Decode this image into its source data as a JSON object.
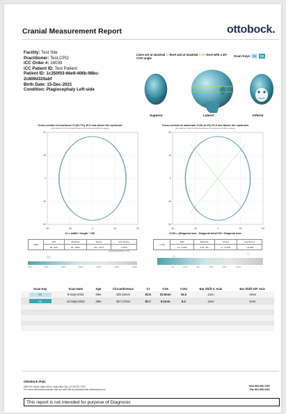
{
  "report": {
    "title": "Cranial Measurement Report",
    "brand": "ottobock",
    "brand_dot": "."
  },
  "patient": {
    "facility_label": "Facility:",
    "facility": "Test Site",
    "practitioner_label": "Practitioner:",
    "practitioner": "Test,CPO",
    "icc_order_label": "iCC Order #:",
    "icc_order": "24039",
    "icc_patient_label": "iCC Patient ID:",
    "icc_patient": "Test Patient",
    "patient_id_label": "Patient ID:",
    "patient_id": "1c350f03-66e9-406b-98bc-2c809d320abf",
    "birth_date_label": "Birth Date:",
    "birth_date": "15-Dec-2021",
    "condition_label": "Condition:",
    "condition": "Plagiocephaly Left-side"
  },
  "views": {
    "note_prefix": "Lines are at maximal ",
    "note_ci": "CI",
    "note_mid": " level and at maximal ",
    "note_cva": "CVAI",
    "note_suffix": " level with a 45° CVAI angle",
    "scan_keys_label": "Scan Keys",
    "scan_keys": [
      "01",
      "02"
    ],
    "labels": {
      "superior": "Superior",
      "lateral": "Lateral",
      "inferior": "Inferior"
    }
  },
  "ci_chart": {
    "title": "Cross-section at maximum CI (81.7%) 40.0 mm above the eyebrows",
    "subtitle": "(the maximum CI is computed between the eyebrows and 80mm above)",
    "formula": "CI = width / length * 100",
    "severity": {
      "headers": [
        "<85%",
        "Mild",
        "Moderate",
        "Severe",
        "Very Severe"
      ],
      "ranges": [
        "",
        "90 - 93%",
        "93 - 100%",
        "100 - 107%",
        "> 107%"
      ]
    },
    "std_dev": "Standard deviation: 0.57",
    "scale_ticks": [
      "70%",
      "80%",
      "90%",
      "100%",
      "110%",
      "120%",
      "130%"
    ],
    "markers": [
      81.5,
      81.7
    ],
    "chart_data": {
      "type": "scatter",
      "x_ticks": [
        -90,
        -45,
        0,
        45,
        90
      ],
      "y_ticks": [
        90,
        45,
        0,
        -45,
        -90
      ],
      "xlim": [
        -90,
        90
      ],
      "ylim": [
        -90,
        90
      ],
      "grid": true,
      "series": [
        {
          "rx": 66,
          "ry": 82,
          "cx": 0,
          "cy": 0
        },
        {
          "rx": 67,
          "ry": 82,
          "cx": 0,
          "cy": 0
        }
      ]
    }
  },
  "cvai_chart": {
    "title": "Cross-section at maximum CVAI (6.2%) 21.0 mm above the eyebrows",
    "subtitle": "(the maximum CVAI is computed between the eyebrows and 80mm above)",
    "formula": "CVAI = (Diagonal max - Diagonal min)*100 / Diagonal max",
    "severity": {
      "headers": [
        "< 3.5%",
        "Mild",
        "Moderate",
        "Severe",
        "Very Severe"
      ],
      "ranges": [
        "",
        "3.5 - 6.25%",
        "6.25 - 9%",
        "9 - 11.25%",
        "> 11.25%"
      ]
    },
    "scale_ticks": [
      "0%",
      "2.5%",
      "5%",
      "7.5%",
      "10%",
      "12.5%"
    ],
    "markers": [
      16.0,
      6.2
    ],
    "chart_data": {
      "type": "scatter",
      "x_ticks": [
        -90,
        -45,
        0,
        45,
        90
      ],
      "y_ticks": [
        90,
        45,
        0,
        -45,
        -90
      ],
      "xlim": [
        -90,
        90
      ],
      "ylim": [
        -90,
        90
      ],
      "grid": true,
      "series": [
        {
          "rx": 64,
          "ry": 82,
          "cx": 0,
          "cy": 0
        },
        {
          "rx": 65,
          "ry": 82,
          "cx": 0,
          "cy": 0
        }
      ]
    }
  },
  "scans": {
    "headers": [
      "Scan Key",
      "Scan Date",
      "Age",
      "Circumference",
      "CI",
      "CVA",
      "CVAI",
      "Ear Shift V. Axis",
      "Ear Shift A/P. Axis"
    ],
    "rows": [
      {
        "key": "01",
        "date": "8-Sept-2022",
        "age": "38w",
        "circ": "439.18mm",
        "ci": "81.5",
        "cva": "23.5mm",
        "cvai": "16.0",
        "ear_v": "1mm",
        "ear_ap": "-4mm"
      },
      {
        "key": "02",
        "date": "12-Sept-2022",
        "age": "38w",
        "circ": "457.17mm",
        "ci": "81.7",
        "cva": "9.1mm",
        "cvai": "6.2",
        "ear_v": "1mm",
        "ear_ap": "1mm"
      }
    ]
  },
  "footer": {
    "company": "Ottobock iFab:",
    "address": "3820 W. Great Lakes Drive, Salt Lake City, UT 84120  7200",
    "info": "For more information please visit our web site at professionals.ottobockus.com",
    "phone1": "USA 866.686.7287",
    "phone2": "Fax 801.956.2401",
    "disclaimer": "This report is not intended for purpose of Diagnosis"
  },
  "colors": {
    "accent": "#3aa2b3",
    "accent_light": "#b9e6ec",
    "contour_1": "#7fc8c0",
    "contour_2": "#5d8fa6",
    "brand": "#1e2f4f"
  }
}
